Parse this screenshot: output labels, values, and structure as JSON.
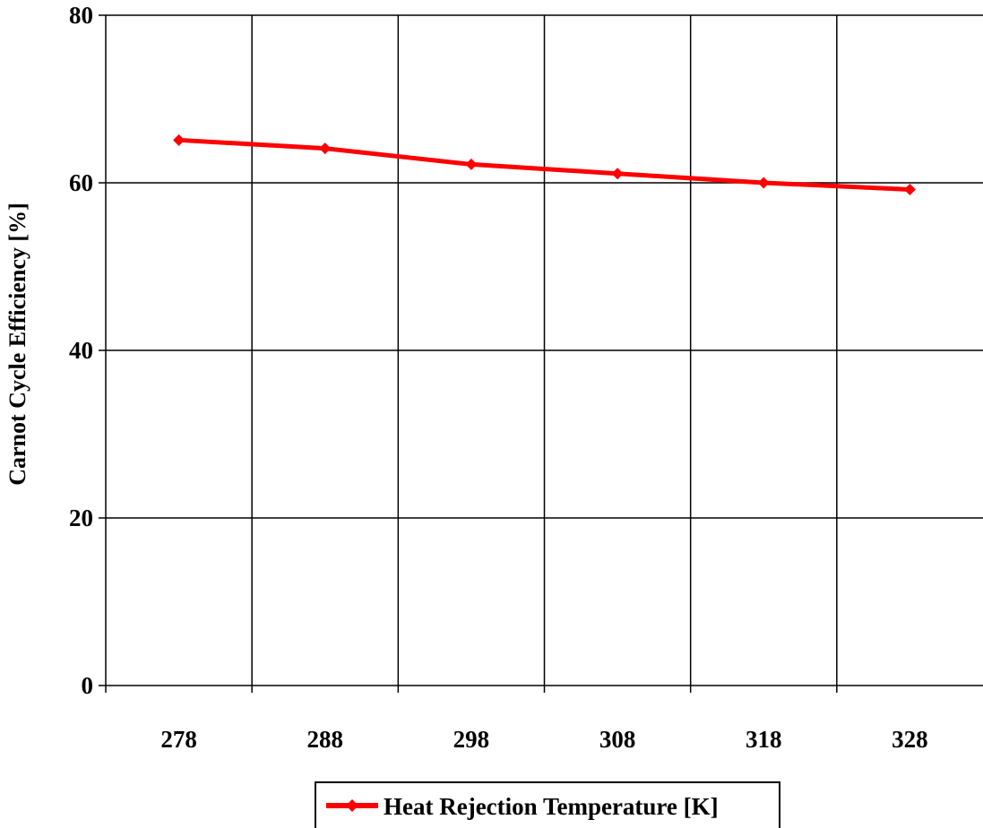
{
  "chart_data": {
    "type": "line",
    "xlabel": "",
    "ylabel": "Carnot Cycle Efficiency [%]",
    "categories": [
      "278",
      "288",
      "298",
      "308",
      "318",
      "328"
    ],
    "ylim": [
      0,
      80
    ],
    "yticks": [
      0,
      20,
      40,
      60,
      80
    ],
    "grid": true,
    "legend_position": "bottom",
    "series": [
      {
        "name": "Heat Rejection Temperature [K]",
        "color": "#ff0000",
        "marker": "diamond",
        "values": [
          65.1,
          64.1,
          62.2,
          61.1,
          60.0,
          59.2
        ]
      }
    ]
  }
}
